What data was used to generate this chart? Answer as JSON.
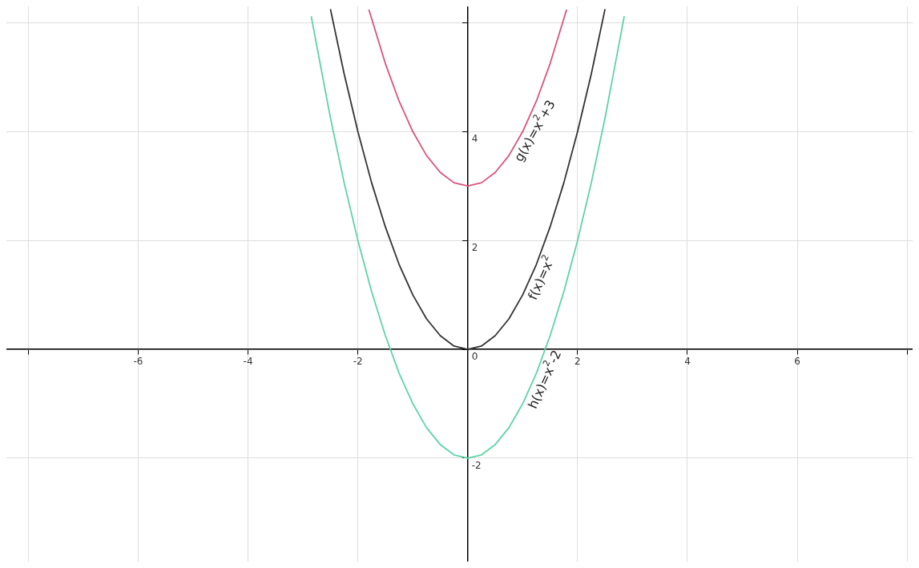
{
  "chart_data": {
    "type": "line",
    "xlim": [
      -8.4,
      8.1
    ],
    "ylim": [
      -3.9,
      6.3
    ],
    "xticks": [
      {
        "value": -8,
        "label": null
      },
      -6,
      -4,
      -2,
      {
        "value": 0,
        "label": null
      },
      2,
      4,
      6,
      {
        "value": 8,
        "label": null
      }
    ],
    "yticks": [
      -2,
      0,
      2,
      4,
      {
        "value": 6,
        "label": null
      }
    ],
    "grid": true,
    "marker": "none",
    "line_style": "solid",
    "series": [
      {
        "name": "g(x)=x$^{2}$+3",
        "color": "#d9547a",
        "x": [
          -1.8,
          -1.5,
          -1.25,
          -1,
          -0.75,
          -0.5,
          -0.25,
          0,
          0.25,
          0.5,
          0.75,
          1,
          1.25,
          1.5,
          1.8
        ],
        "values": [
          6.24,
          5.25,
          4.56,
          4,
          3.56,
          3.25,
          3.06,
          3,
          3.06,
          3.25,
          3.56,
          4,
          4.56,
          5.25,
          6.24
        ]
      },
      {
        "name": "f(x)=x$^{2}$",
        "color": "#333333",
        "x": [
          -2.5,
          -2.25,
          -2,
          -1.75,
          -1.5,
          -1.25,
          -1,
          -0.75,
          -0.5,
          -0.25,
          0,
          0.25,
          0.5,
          0.75,
          1,
          1.25,
          1.5,
          1.75,
          2,
          2.25,
          2.5
        ],
        "values": [
          6.25,
          5.06,
          4,
          3.06,
          2.25,
          1.56,
          1,
          0.56,
          0.25,
          0.06,
          0,
          0.06,
          0.25,
          0.56,
          1,
          1.56,
          2.25,
          3.06,
          4,
          5.06,
          6.25
        ]
      },
      {
        "name": "h(x)=x$^{2}$-2",
        "color": "#5fd3a6",
        "x": [
          -2.85,
          -2.5,
          -2.25,
          -2,
          -1.75,
          -1.5,
          -1.25,
          -1,
          -0.75,
          -0.5,
          -0.25,
          0,
          0.25,
          0.5,
          0.75,
          1,
          1.25,
          1.5,
          1.75,
          2,
          2.25,
          2.5,
          2.85
        ],
        "values": [
          6.12,
          4.25,
          3.06,
          2,
          1.06,
          0.25,
          -0.44,
          -1,
          -1.44,
          -1.75,
          -1.94,
          -2,
          -1.94,
          -1.75,
          -1.44,
          -1,
          -0.44,
          0.25,
          1.06,
          2,
          3.06,
          4.25,
          6.12
        ]
      }
    ]
  }
}
